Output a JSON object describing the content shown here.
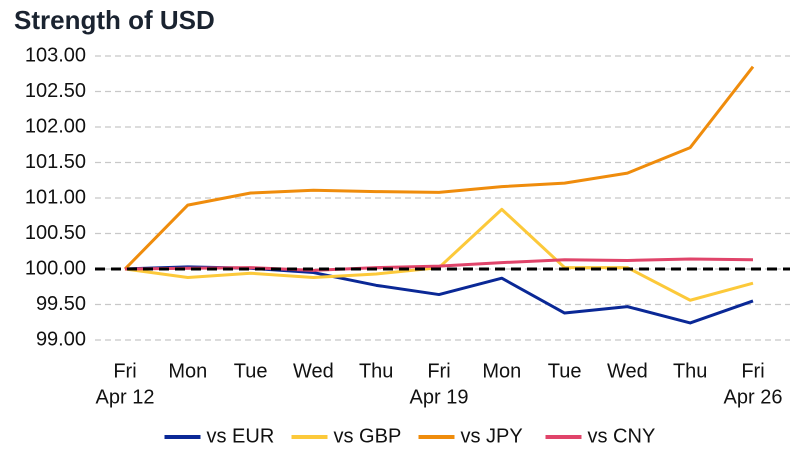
{
  "chart_data": {
    "type": "line",
    "title": "Strength of USD",
    "categories": [
      [
        "Fri",
        "Apr 12"
      ],
      [
        "Mon"
      ],
      [
        "Tue"
      ],
      [
        "Wed"
      ],
      [
        "Thu"
      ],
      [
        "Fri",
        "Apr 19"
      ],
      [
        "Mon"
      ],
      [
        "Tue"
      ],
      [
        "Wed"
      ],
      [
        "Thu"
      ],
      [
        "Fri",
        "Apr 26"
      ]
    ],
    "series": [
      {
        "name": "vs EUR",
        "color": "#0a2896",
        "values": [
          100,
          100.03,
          100.01,
          99.95,
          99.77,
          99.64,
          99.87,
          99.38,
          99.47,
          99.24,
          99.55
        ]
      },
      {
        "name": "vs GBP",
        "color": "#fcc93a",
        "values": [
          100,
          99.88,
          99.94,
          99.88,
          99.93,
          100.02,
          100.84,
          100.02,
          100.02,
          99.56,
          99.8
        ]
      },
      {
        "name": "vs JPY",
        "color": "#ef8c0c",
        "values": [
          100,
          100.9,
          101.07,
          101.11,
          101.09,
          101.08,
          101.16,
          101.21,
          101.35,
          101.71,
          102.85
        ]
      },
      {
        "name": "vs CNY",
        "color": "#e0446a",
        "values": [
          100,
          100.01,
          100.02,
          99.98,
          100.02,
          100.04,
          100.09,
          100.13,
          100.12,
          100.14,
          100.13
        ]
      }
    ],
    "ylim": [
      99,
      103
    ],
    "yticks": [
      {
        "value": 99,
        "label": "99.00"
      },
      {
        "value": 99.5,
        "label": "99.50"
      },
      {
        "value": 100,
        "label": "100.00"
      },
      {
        "value": 100.5,
        "label": "100.50"
      },
      {
        "value": 101,
        "label": "101.00"
      },
      {
        "value": 101.5,
        "label": "101.50"
      },
      {
        "value": 102,
        "label": "102.00"
      },
      {
        "value": 102.5,
        "label": "102.50"
      },
      {
        "value": 103,
        "label": "103.00"
      }
    ],
    "grid": true,
    "reference_line": 100,
    "legend": "bottom"
  }
}
